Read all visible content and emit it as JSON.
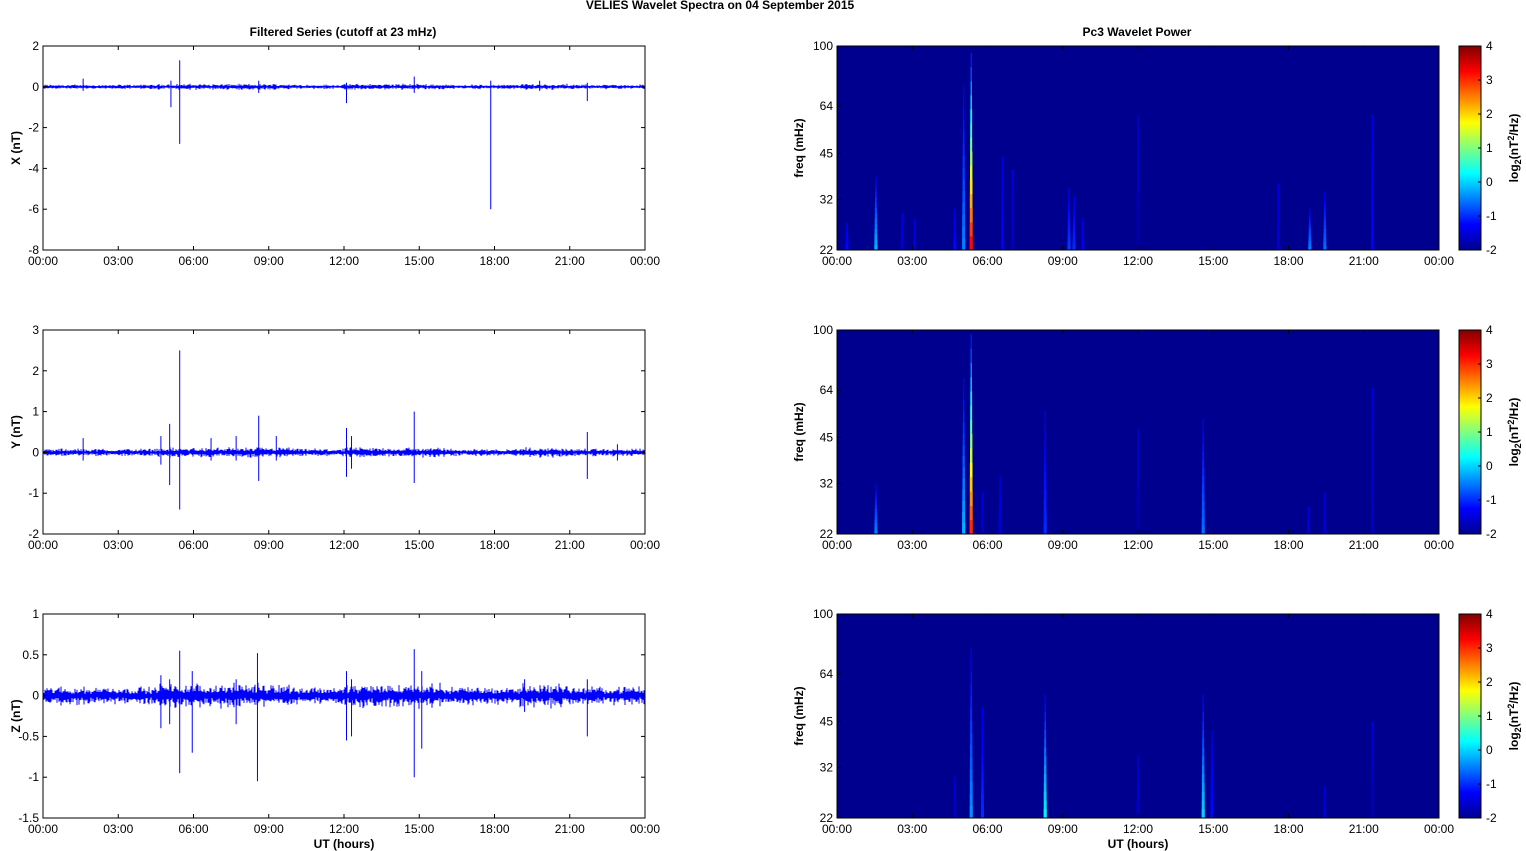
{
  "figure": {
    "title": "VELIES Wavelet Spectra on 04 September 2015",
    "left_title": "Filtered Series (cutoff at 23 mHz)",
    "right_title": "Pc3 Wavelet Power",
    "xlabel": "UT (hours)",
    "time_ticks": [
      "00:00",
      "03:00",
      "06:00",
      "09:00",
      "12:00",
      "15:00",
      "18:00",
      "21:00",
      "00:00"
    ],
    "freq_ylabel": "freq (mHz)",
    "colorbar_label": "log2(nT^2/Hz)",
    "colorbar_ticks": [
      "4",
      "3",
      "2",
      "1",
      "0",
      "-1",
      "-2"
    ],
    "colors": {
      "trace": "#0000ff",
      "background": "#00008f"
    }
  },
  "chart_data": [
    {
      "type": "line",
      "ylabel": "X (nT)",
      "xlabel": "",
      "xlim_hours": [
        0,
        24
      ],
      "ylim": [
        -8,
        2
      ],
      "yticks": [
        "2",
        "0",
        "-2",
        "-4",
        "-6",
        "-8"
      ],
      "baseline": 0,
      "noise_amplitude": 0.06,
      "spikes": [
        {
          "t": 1.6,
          "lo": -0.2,
          "hi": 0.4
        },
        {
          "t": 5.1,
          "lo": -1.0,
          "hi": 0.3
        },
        {
          "t": 5.45,
          "lo": -2.8,
          "hi": 1.3
        },
        {
          "t": 8.6,
          "lo": -0.3,
          "hi": 0.3
        },
        {
          "t": 12.1,
          "lo": -0.8,
          "hi": 0.2
        },
        {
          "t": 14.8,
          "lo": -0.3,
          "hi": 0.5
        },
        {
          "t": 17.85,
          "lo": -6.0,
          "hi": 0.3
        },
        {
          "t": 19.8,
          "lo": -0.2,
          "hi": 0.3
        },
        {
          "t": 21.7,
          "lo": -0.7,
          "hi": 0.2
        }
      ]
    },
    {
      "type": "line",
      "ylabel": "Y (nT)",
      "xlabel": "",
      "xlim_hours": [
        0,
        24
      ],
      "ylim": [
        -2,
        3
      ],
      "yticks": [
        "3",
        "2",
        "1",
        "0",
        "-1",
        "-2"
      ],
      "baseline": 0,
      "noise_amplitude": 0.05,
      "spikes": [
        {
          "t": 1.6,
          "lo": -0.2,
          "hi": 0.35
        },
        {
          "t": 4.7,
          "lo": -0.3,
          "hi": 0.4
        },
        {
          "t": 5.05,
          "lo": -0.8,
          "hi": 0.7
        },
        {
          "t": 5.45,
          "lo": -1.4,
          "hi": 2.5
        },
        {
          "t": 6.7,
          "lo": -0.2,
          "hi": 0.35
        },
        {
          "t": 7.7,
          "lo": -0.2,
          "hi": 0.4
        },
        {
          "t": 8.6,
          "lo": -0.7,
          "hi": 0.9
        },
        {
          "t": 9.3,
          "lo": -0.2,
          "hi": 0.4
        },
        {
          "t": 12.1,
          "lo": -0.6,
          "hi": 0.6
        },
        {
          "t": 12.3,
          "lo": -0.4,
          "hi": 0.4
        },
        {
          "t": 14.8,
          "lo": -0.75,
          "hi": 1.0
        },
        {
          "t": 21.7,
          "lo": -0.65,
          "hi": 0.5
        },
        {
          "t": 22.9,
          "lo": -0.2,
          "hi": 0.2
        }
      ]
    },
    {
      "type": "line",
      "ylabel": "Z (nT)",
      "xlabel": "UT (hours)",
      "xlim_hours": [
        0,
        24
      ],
      "ylim": [
        -1.5,
        1
      ],
      "yticks": [
        "1",
        "0.5",
        "0",
        "-0.5",
        "-1",
        "-1.5"
      ],
      "baseline": 0,
      "noise_amplitude": 0.06,
      "spikes": [
        {
          "t": 4.7,
          "lo": -0.4,
          "hi": 0.25
        },
        {
          "t": 5.05,
          "lo": -0.35,
          "hi": 0.2
        },
        {
          "t": 5.45,
          "lo": -0.95,
          "hi": 0.55
        },
        {
          "t": 5.95,
          "lo": -0.7,
          "hi": 0.3
        },
        {
          "t": 7.7,
          "lo": -0.35,
          "hi": 0.2
        },
        {
          "t": 8.55,
          "lo": -1.05,
          "hi": 0.52
        },
        {
          "t": 12.1,
          "lo": -0.55,
          "hi": 0.3
        },
        {
          "t": 12.3,
          "lo": -0.5,
          "hi": 0.2
        },
        {
          "t": 14.8,
          "lo": -1.0,
          "hi": 0.57
        },
        {
          "t": 15.1,
          "lo": -0.65,
          "hi": 0.3
        },
        {
          "t": 19.2,
          "lo": -0.2,
          "hi": 0.2
        },
        {
          "t": 21.7,
          "lo": -0.5,
          "hi": 0.2
        }
      ]
    },
    {
      "type": "heatmap",
      "ylabel": "freq (mHz)",
      "xlabel": "",
      "xlim_hours": [
        0,
        24
      ],
      "ylim": [
        22,
        100
      ],
      "yscale": "log",
      "yticks": [
        100,
        64,
        45,
        32,
        22
      ],
      "zlim": [
        -2,
        4
      ],
      "features": [
        {
          "t": 0.4,
          "ftop": 27,
          "peak": -1.2
        },
        {
          "t": 1.55,
          "ftop": 38,
          "peak": -0.2
        },
        {
          "t": 2.6,
          "ftop": 29,
          "peak": -1.5
        },
        {
          "t": 3.1,
          "ftop": 28,
          "peak": -1.5
        },
        {
          "t": 4.7,
          "ftop": 30,
          "peak": -1.2
        },
        {
          "t": 5.05,
          "ftop": 75,
          "peak": -0.5
        },
        {
          "t": 5.35,
          "ftop": 95,
          "peak": 3.2
        },
        {
          "t": 6.6,
          "ftop": 44,
          "peak": -1.3
        },
        {
          "t": 7.0,
          "ftop": 40,
          "peak": -1.6
        },
        {
          "t": 9.25,
          "ftop": 35,
          "peak": -0.9
        },
        {
          "t": 9.45,
          "ftop": 33,
          "peak": -1.0
        },
        {
          "t": 9.8,
          "ftop": 28,
          "peak": -1.3
        },
        {
          "t": 12.0,
          "ftop": 60,
          "peak": -1.8
        },
        {
          "t": 17.6,
          "ftop": 36,
          "peak": -1.5
        },
        {
          "t": 18.85,
          "ftop": 30,
          "peak": -0.5
        },
        {
          "t": 19.45,
          "ftop": 34,
          "peak": -0.6
        },
        {
          "t": 21.35,
          "ftop": 60,
          "peak": -1.3
        }
      ]
    },
    {
      "type": "heatmap",
      "ylabel": "freq (mHz)",
      "xlabel": "",
      "xlim_hours": [
        0,
        24
      ],
      "ylim": [
        22,
        100
      ],
      "yscale": "log",
      "yticks": [
        100,
        64,
        45,
        32,
        22
      ],
      "zlim": [
        -2,
        4
      ],
      "features": [
        {
          "t": 1.55,
          "ftop": 32,
          "peak": -0.5
        },
        {
          "t": 5.05,
          "ftop": 70,
          "peak": -0.2
        },
        {
          "t": 5.35,
          "ftop": 97,
          "peak": 3.0
        },
        {
          "t": 5.8,
          "ftop": 30,
          "peak": -1.6
        },
        {
          "t": 6.5,
          "ftop": 34,
          "peak": -1.5
        },
        {
          "t": 8.3,
          "ftop": 55,
          "peak": -1.0
        },
        {
          "t": 12.0,
          "ftop": 48,
          "peak": -1.8
        },
        {
          "t": 14.6,
          "ftop": 52,
          "peak": -0.6
        },
        {
          "t": 18.8,
          "ftop": 27,
          "peak": -1.5
        },
        {
          "t": 19.45,
          "ftop": 30,
          "peak": -1.5
        },
        {
          "t": 21.35,
          "ftop": 65,
          "peak": -1.6
        }
      ]
    },
    {
      "type": "heatmap",
      "ylabel": "freq (mHz)",
      "xlabel": "UT (hours)",
      "xlim_hours": [
        0,
        24
      ],
      "ylim": [
        22,
        100
      ],
      "yscale": "log",
      "yticks": [
        100,
        64,
        45,
        32,
        22
      ],
      "zlim": [
        -2,
        4
      ],
      "features": [
        {
          "t": 4.7,
          "ftop": 30,
          "peak": -1.6
        },
        {
          "t": 5.35,
          "ftop": 78,
          "peak": -0.4
        },
        {
          "t": 5.8,
          "ftop": 50,
          "peak": -1.0
        },
        {
          "t": 8.3,
          "ftop": 55,
          "peak": 0.2
        },
        {
          "t": 12.0,
          "ftop": 35,
          "peak": -1.6
        },
        {
          "t": 14.6,
          "ftop": 55,
          "peak": 0.0
        },
        {
          "t": 14.95,
          "ftop": 42,
          "peak": -1.2
        },
        {
          "t": 19.45,
          "ftop": 28,
          "peak": -1.5
        },
        {
          "t": 21.35,
          "ftop": 45,
          "peak": -1.7
        }
      ]
    }
  ]
}
